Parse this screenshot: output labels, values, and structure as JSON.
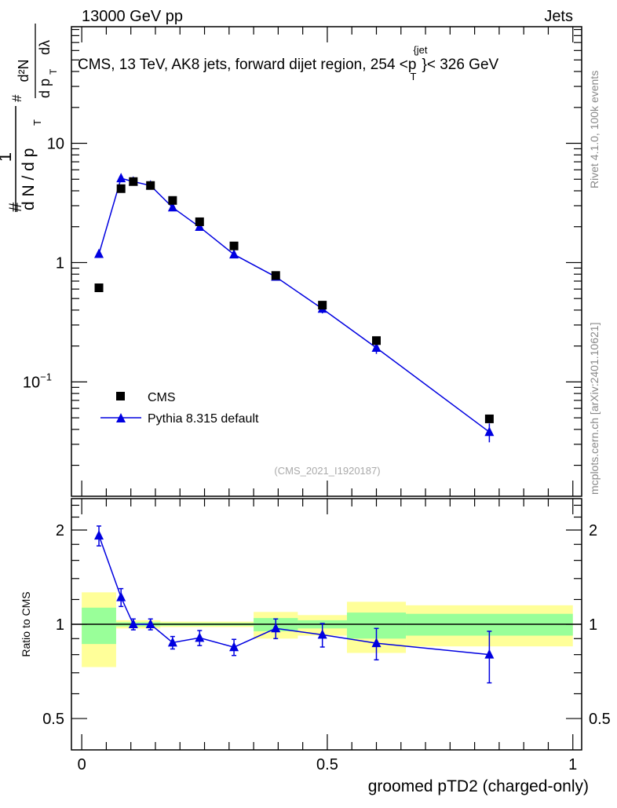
{
  "header": {
    "left": "13000 GeV pp",
    "right": "Jets"
  },
  "side_text": {
    "rivet": "Rivet 4.1.0,  100k events",
    "mcplots": "mcplots.cern.ch [arXiv:2401.10621]"
  },
  "colors": {
    "cms": "#000000",
    "pythia": "#0000e0",
    "band_total": "#ffff99",
    "band_stat": "#99ff99"
  },
  "chart_data": [
    {
      "type": "scatter",
      "title": "CMS, 13 TeV, AK8 jets, forward dijet region, 254 <p_T^{jet}< 326 GeV",
      "title_main": "CMS, 13 TeV, AK8 jets, forward dijet region, 254 <p",
      "title_sup": "{jet",
      "title_sub": "T",
      "title_end": "}< 326 GeV",
      "ylabel": "# 1/(dN/dp_T) # d²N/(dp_T dλ)",
      "ylabel_parts": {
        "a": "#",
        "b": "1",
        "c": "d N / d p",
        "d": "T",
        "e": "#",
        "f": "d²N",
        "g": "d p",
        "h": "T",
        "i": "dλ"
      },
      "yscale": "log",
      "ylim": [
        0.011,
        95
      ],
      "xlim": [
        -0.021,
        1.018
      ],
      "ytick_labels": [
        {
          "v": 10,
          "t": "10"
        },
        {
          "v": 1,
          "t": "1"
        },
        {
          "v": 0.1,
          "t": "10",
          "sup": "−1"
        }
      ],
      "watermark": "(CMS_2021_I1920187)",
      "legend": {
        "placement": "lower-left",
        "entries": [
          "CMS",
          "Pythia 8.315 default"
        ]
      },
      "x": [
        0.035,
        0.08,
        0.105,
        0.14,
        0.185,
        0.24,
        0.31,
        0.395,
        0.49,
        0.6,
        0.83
      ],
      "bin_edges": [
        0,
        0.07,
        0.09,
        0.12,
        0.16,
        0.21,
        0.27,
        0.35,
        0.44,
        0.54,
        0.66,
        1.0
      ],
      "series": [
        {
          "name": "CMS",
          "values": [
            0.615,
            4.17,
            4.78,
            4.43,
            3.32,
            2.2,
            1.38,
            0.78,
            0.44,
            0.222,
            0.049
          ]
        },
        {
          "name": "Pythia 8.315 default",
          "values": [
            1.18,
            5.09,
            4.78,
            4.43,
            2.9,
            1.99,
            1.17,
            0.76,
            0.41,
            0.193,
            0.038
          ],
          "rel_err": [
            0.07,
            0.065,
            0.04,
            0.04,
            0.045,
            0.055,
            0.06,
            0.07,
            0.085,
            0.11,
            0.18
          ]
        }
      ]
    },
    {
      "type": "scatter",
      "ylabel": "Ratio to CMS",
      "xlabel": "groomed pTD2 (charged-only)",
      "yscale": "log",
      "ylim": [
        0.397,
        2.52
      ],
      "xlim": [
        -0.021,
        1.018
      ],
      "ytick_labels": [
        {
          "v": 2,
          "t": "2"
        },
        {
          "v": 1,
          "t": "1"
        },
        {
          "v": 0.5,
          "t": "0.5"
        }
      ],
      "xtick_labels": [
        {
          "v": 0,
          "t": "0"
        },
        {
          "v": 0.5,
          "t": "0.5"
        },
        {
          "v": 1,
          "t": "1"
        }
      ],
      "band_total": [
        [
          0.73,
          1.265
        ],
        [
          0.97,
          1.03
        ],
        [
          0.97,
          1.03
        ],
        [
          0.97,
          1.03
        ],
        [
          0.98,
          1.02
        ],
        [
          0.98,
          1.02
        ],
        [
          0.98,
          1.02
        ],
        [
          0.9,
          1.095
        ],
        [
          0.92,
          1.07
        ],
        [
          0.81,
          1.18
        ],
        [
          0.85,
          1.15
        ]
      ],
      "band_stat": [
        [
          0.865,
          1.13
        ],
        [
          0.985,
          1.015
        ],
        [
          0.985,
          1.015
        ],
        [
          0.985,
          1.015
        ],
        [
          0.99,
          1.01
        ],
        [
          0.99,
          1.01
        ],
        [
          0.99,
          1.01
        ],
        [
          0.95,
          1.047
        ],
        [
          0.97,
          1.03
        ],
        [
          0.9,
          1.09
        ],
        [
          0.92,
          1.08
        ]
      ],
      "ratio": [
        1.92,
        1.22,
        1.0,
        1.0,
        0.874,
        0.905,
        0.845,
        0.97,
        0.926,
        0.87,
        0.8
      ],
      "ratio_err": [
        0.14,
        0.08,
        0.04,
        0.04,
        0.04,
        0.05,
        0.05,
        0.07,
        0.08,
        0.1,
        0.15
      ]
    }
  ]
}
